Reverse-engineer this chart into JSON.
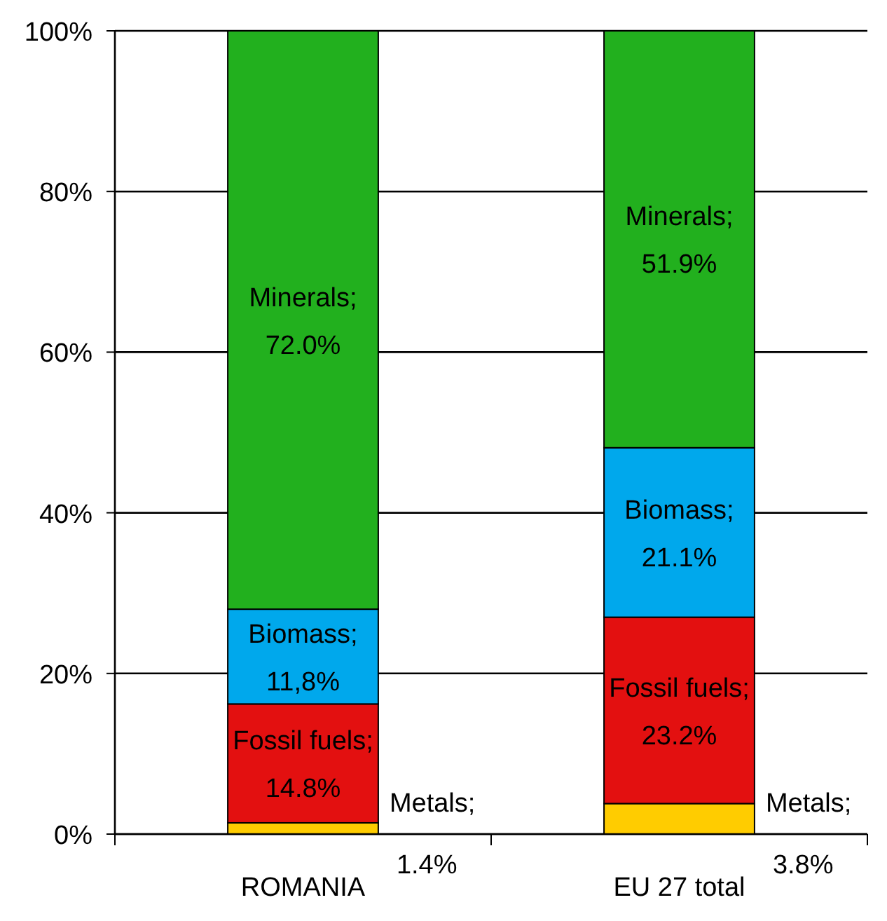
{
  "chart_data": {
    "type": "bar",
    "stacked": true,
    "categories": [
      "ROMANIA",
      "EU 27 total"
    ],
    "series": [
      {
        "color": "#ffcc00",
        "values": [
          1.4,
          3.8
        ],
        "value_labels": [
          "Metals; 1.4%",
          "Metals; 3.8%"
        ]
      },
      {
        "color": "#e31010",
        "values": [
          14.8,
          23.2
        ],
        "value_labels": [
          "Fossil fuels; 14.8%",
          "Fossil fuels; 23.2%"
        ]
      },
      {
        "color": "#00a8ec",
        "values": [
          11.8,
          21.1
        ],
        "value_labels": [
          "Biomass; 11,8%",
          "Biomass; 21.1%"
        ]
      },
      {
        "color": "#22b01e",
        "values": [
          72.0,
          51.9
        ],
        "value_labels": [
          "Minerals; 72.0%",
          "Minerals; 51.9%"
        ]
      }
    ],
    "ylim": [
      0,
      100
    ],
    "yticks": [
      {
        "value": 0,
        "label": "0%"
      },
      {
        "value": 20,
        "label": "20%"
      },
      {
        "value": 40,
        "label": "40%"
      },
      {
        "value": 60,
        "label": "60%"
      },
      {
        "value": 80,
        "label": "80%"
      },
      {
        "value": 100,
        "label": "100%"
      }
    ],
    "grid": "y"
  }
}
